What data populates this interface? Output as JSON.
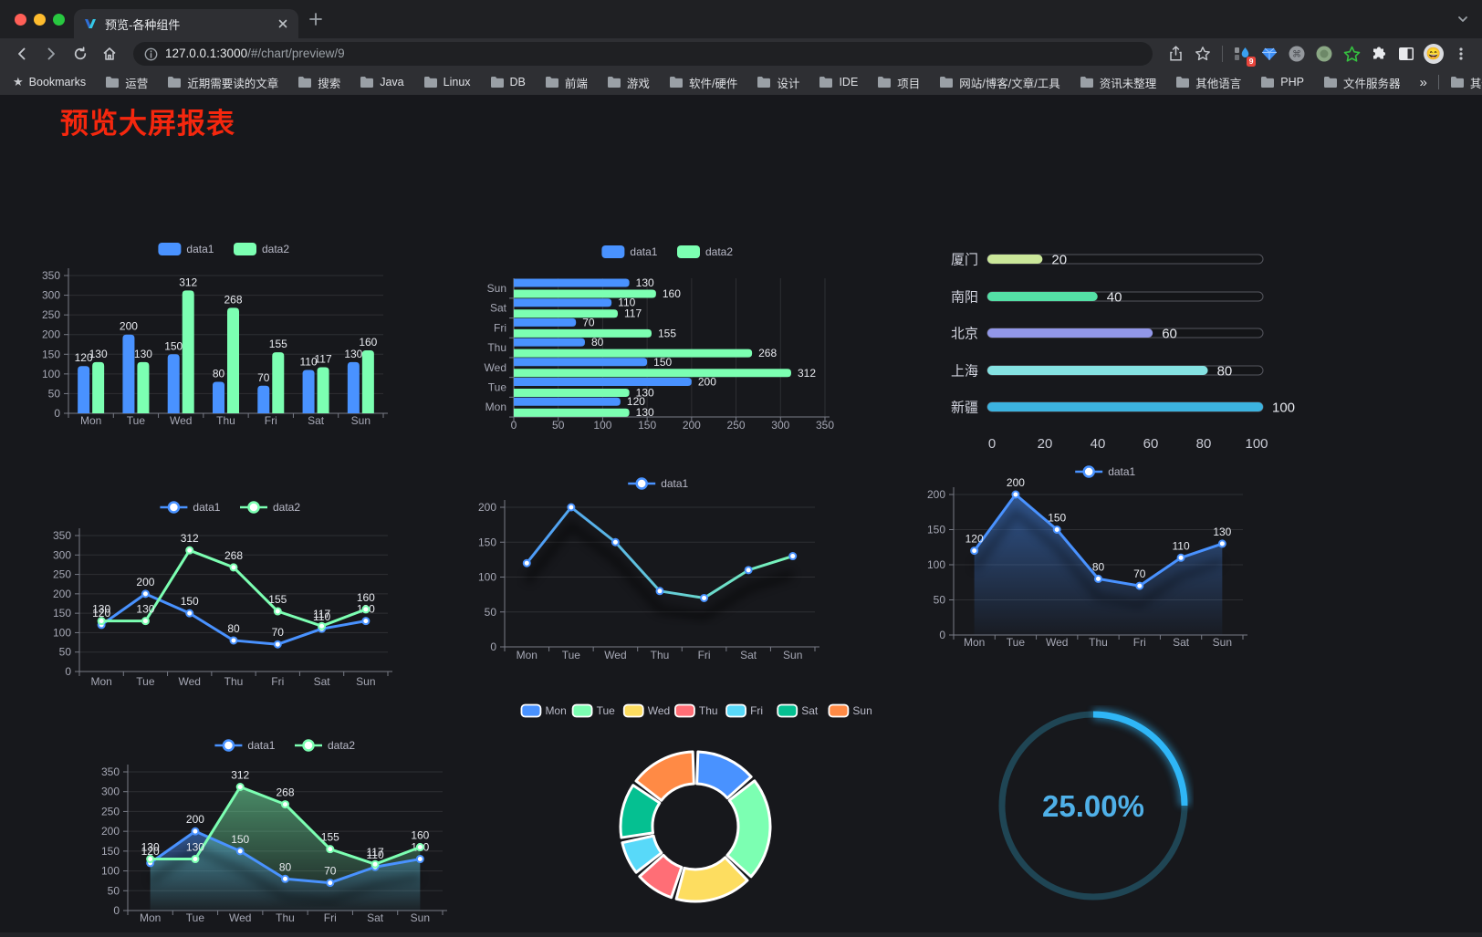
{
  "browser": {
    "tab_title": "预览-各种组件",
    "url_host": "127.0.0.1:3000",
    "url_path": "/#/chart/preview/9",
    "extension_badge": "9",
    "avatar_emoji": "😄",
    "bookmarks_label": "Bookmarks",
    "bookmarks": [
      "运营",
      "近期需要读的文章",
      "搜索",
      "Java",
      "Linux",
      "DB",
      "前端",
      "游戏",
      "软件/硬件",
      "设计",
      "IDE",
      "项目",
      "网站/博客/文章/工具",
      "资讯未整理",
      "其他语言",
      "PHP",
      "文件服务器"
    ],
    "bookmarks_overflow": "»",
    "other_bookmarks": "其他书签"
  },
  "page": {
    "title": "预览大屏报表"
  },
  "colors": {
    "title_red": "#f5270e",
    "accent_blue": "#4992ff",
    "accent_green": "#7cffb2",
    "palette": [
      "#4992ff",
      "#7cffb2",
      "#fddd60",
      "#ff6e76",
      "#58d9f9",
      "#05c091",
      "#ff8a45"
    ],
    "gauge_blue": "#2fb6f7",
    "progress_colors": [
      "#cbe79a",
      "#54e0a6",
      "#9297e8",
      "#85e2e2",
      "#3cb3e0"
    ]
  },
  "chart_data": [
    {
      "type": "bar",
      "categories": [
        "Mon",
        "Tue",
        "Wed",
        "Thu",
        "Fri",
        "Sat",
        "Sun"
      ],
      "series": [
        {
          "name": "data1",
          "color": "#4992ff",
          "values": [
            120,
            200,
            150,
            80,
            70,
            110,
            130
          ]
        },
        {
          "name": "data2",
          "color": "#7cffb2",
          "values": [
            130,
            130,
            312,
            268,
            155,
            117,
            160
          ]
        }
      ],
      "ylim": [
        0,
        350
      ],
      "ytick_step": 50,
      "legend_position": "top",
      "data_labels": true,
      "grid": true
    },
    {
      "type": "bar-horizontal",
      "categories": [
        "Mon",
        "Tue",
        "Wed",
        "Thu",
        "Fri",
        "Sat",
        "Sun"
      ],
      "series": [
        {
          "name": "data1",
          "color": "#4992ff",
          "values": [
            120,
            200,
            150,
            80,
            70,
            110,
            130
          ]
        },
        {
          "name": "data2",
          "color": "#7cffb2",
          "values": [
            130,
            130,
            312,
            268,
            155,
            117,
            160
          ]
        }
      ],
      "xlim": [
        0,
        350
      ],
      "xtick_step": 50,
      "legend_position": "top",
      "data_labels": true,
      "grid": true
    },
    {
      "type": "progress-bar",
      "categories": [
        "厦门",
        "南阳",
        "北京",
        "上海",
        "新疆"
      ],
      "values": [
        20,
        40,
        60,
        80,
        100
      ],
      "xlim": [
        0,
        100
      ],
      "xticks": [
        0,
        20,
        40,
        60,
        80,
        100
      ]
    },
    {
      "type": "line",
      "categories": [
        "Mon",
        "Tue",
        "Wed",
        "Thu",
        "Fri",
        "Sat",
        "Sun"
      ],
      "series": [
        {
          "name": "data1",
          "color": "#4992ff",
          "values": [
            120,
            200,
            150,
            80,
            70,
            110,
            130
          ]
        },
        {
          "name": "data2",
          "color": "#7cffb2",
          "values": [
            130,
            130,
            312,
            268,
            155,
            117,
            160
          ]
        }
      ],
      "ylim": [
        0,
        350
      ],
      "ytick_step": 50,
      "legend_position": "top",
      "data_labels": true,
      "grid": true
    },
    {
      "type": "line-gradient",
      "categories": [
        "Mon",
        "Tue",
        "Wed",
        "Thu",
        "Fri",
        "Sat",
        "Sun"
      ],
      "series": [
        {
          "name": "data1",
          "gradient": [
            "#4992ff",
            "#7cffb2"
          ],
          "values": [
            120,
            200,
            150,
            80,
            70,
            110,
            130
          ]
        }
      ],
      "ylim": [
        0,
        200
      ],
      "ytick_step": 50,
      "legend_position": "top",
      "data_labels": false,
      "grid": true,
      "shadow": true
    },
    {
      "type": "area",
      "categories": [
        "Mon",
        "Tue",
        "Wed",
        "Thu",
        "Fri",
        "Sat",
        "Sun"
      ],
      "series": [
        {
          "name": "data1",
          "color": "#4992ff",
          "values": [
            120,
            200,
            150,
            80,
            70,
            110,
            130
          ]
        }
      ],
      "ylim": [
        0,
        200
      ],
      "ytick_step": 50,
      "legend_position": "top",
      "data_labels": true,
      "grid": true
    },
    {
      "type": "area",
      "categories": [
        "Mon",
        "Tue",
        "Wed",
        "Thu",
        "Fri",
        "Sat",
        "Sun"
      ],
      "series": [
        {
          "name": "data1",
          "color": "#4992ff",
          "values": [
            120,
            200,
            150,
            80,
            70,
            110,
            130
          ]
        },
        {
          "name": "data2",
          "color": "#7cffb2",
          "values": [
            130,
            130,
            312,
            268,
            155,
            117,
            160
          ]
        }
      ],
      "ylim": [
        0,
        350
      ],
      "ytick_step": 50,
      "legend_position": "top",
      "data_labels": true,
      "grid": true
    },
    {
      "type": "pie",
      "donut": true,
      "categories": [
        "Mon",
        "Tue",
        "Wed",
        "Thu",
        "Fri",
        "Sat",
        "Sun"
      ],
      "values": [
        120,
        200,
        150,
        80,
        70,
        110,
        130
      ],
      "colors": [
        "#4992ff",
        "#7cffb2",
        "#fddd60",
        "#ff6e76",
        "#58d9f9",
        "#05c091",
        "#ff8a45"
      ],
      "legend_position": "top"
    },
    {
      "type": "gauge",
      "value": 25,
      "max": 100,
      "label": "25.00%",
      "color": "#2fb6f7"
    }
  ]
}
